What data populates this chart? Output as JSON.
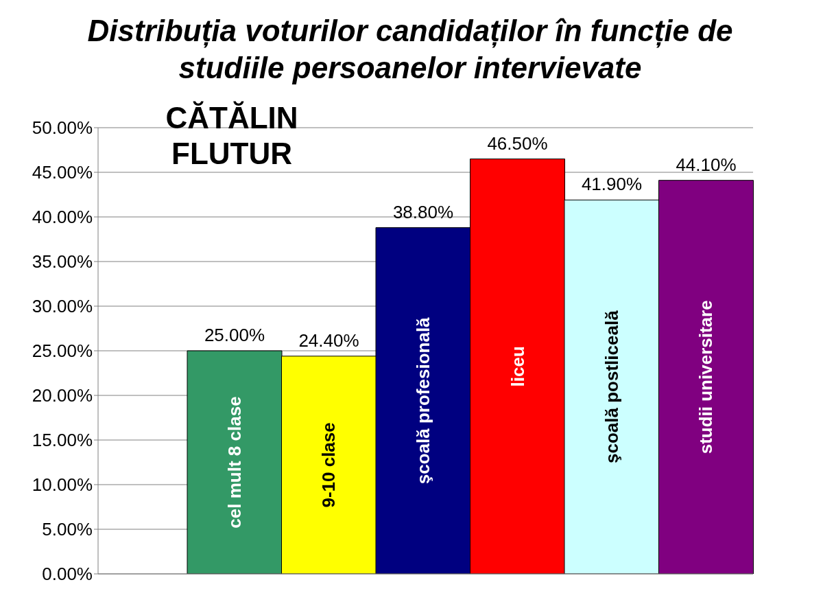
{
  "chart_data": {
    "type": "bar",
    "title": "Distribuția voturilor candidaților în funcție de studiile persoanelor intervievate",
    "annotations": [
      "CĂTĂLIN FLUTUR"
    ],
    "categories": [
      "cel mult 8 clase",
      "9-10 clase",
      "şcoală profesională",
      "liceu",
      "şcoală postliceală",
      "studii universitare"
    ],
    "values": [
      25.0,
      24.4,
      38.8,
      46.5,
      41.9,
      44.1
    ],
    "colors": [
      "#339966",
      "#ffff00",
      "#000080",
      "#ff0000",
      "#ccffff",
      "#800080"
    ],
    "value_labels": [
      "25.00%",
      "24.40%",
      "38.80%",
      "46.50%",
      "41.90%",
      "44.10%"
    ],
    "ylim": [
      0,
      50
    ],
    "yticks": [
      {
        "value": 0,
        "label": "0.00%"
      },
      {
        "value": 5,
        "label": "5.00%"
      },
      {
        "value": 10,
        "label": "10.00%"
      },
      {
        "value": 15,
        "label": "15.00%"
      },
      {
        "value": 20,
        "label": "20.00%"
      },
      {
        "value": 25,
        "label": "25.00%"
      },
      {
        "value": 30,
        "label": "30.00%"
      },
      {
        "value": 35,
        "label": "35.00%"
      },
      {
        "value": 40,
        "label": "40.00%"
      },
      {
        "value": 45,
        "label": "45.00%"
      },
      {
        "value": 50,
        "label": "50.00%"
      }
    ],
    "grid": "y",
    "legend": false
  }
}
